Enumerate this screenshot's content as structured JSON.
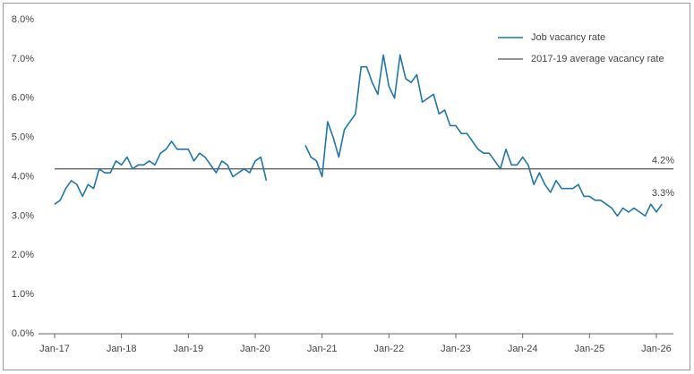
{
  "chart_data": {
    "type": "line",
    "x": [
      "2017-01",
      "2017-02",
      "2017-03",
      "2017-04",
      "2017-05",
      "2017-06",
      "2017-07",
      "2017-08",
      "2017-09",
      "2017-10",
      "2017-11",
      "2017-12",
      "2018-01",
      "2018-02",
      "2018-03",
      "2018-04",
      "2018-05",
      "2018-06",
      "2018-07",
      "2018-08",
      "2018-09",
      "2018-10",
      "2018-11",
      "2018-12",
      "2019-01",
      "2019-02",
      "2019-03",
      "2019-04",
      "2019-05",
      "2019-06",
      "2019-07",
      "2019-08",
      "2019-09",
      "2019-10",
      "2019-11",
      "2019-12",
      "2020-01",
      "2020-02",
      "2020-03",
      "2020-04",
      "2020-05",
      "2020-06",
      "2020-07",
      "2020-08",
      "2020-09",
      "2020-10",
      "2020-11",
      "2020-12",
      "2021-01",
      "2021-02",
      "2021-03",
      "2021-04",
      "2021-05",
      "2021-06",
      "2021-07",
      "2021-08",
      "2021-09",
      "2021-10",
      "2021-11",
      "2021-12",
      "2022-01",
      "2022-02",
      "2022-03",
      "2022-04",
      "2022-05",
      "2022-06",
      "2022-07",
      "2022-08",
      "2022-09",
      "2022-10",
      "2022-11",
      "2022-12",
      "2023-01",
      "2023-02",
      "2023-03",
      "2023-04",
      "2023-05",
      "2023-06",
      "2023-07",
      "2023-08",
      "2023-09",
      "2023-10",
      "2023-11",
      "2023-12",
      "2024-01",
      "2024-02",
      "2024-03",
      "2024-04",
      "2024-05",
      "2024-06",
      "2024-07",
      "2024-08",
      "2024-09",
      "2024-10",
      "2024-11",
      "2024-12",
      "2025-01",
      "2025-02",
      "2025-03",
      "2025-04",
      "2025-05",
      "2025-06",
      "2025-07",
      "2025-08",
      "2025-09",
      "2025-10",
      "2025-11",
      "2025-12",
      "2026-01",
      "2026-02"
    ],
    "series": [
      {
        "name": "Job vacancy rate",
        "color": "#1f77a8",
        "values": [
          3.3,
          3.4,
          3.7,
          3.9,
          3.8,
          3.5,
          3.8,
          3.7,
          4.2,
          4.1,
          4.1,
          4.4,
          4.3,
          4.5,
          4.2,
          4.3,
          4.3,
          4.4,
          4.3,
          4.6,
          4.7,
          4.9,
          4.7,
          4.7,
          4.7,
          4.4,
          4.6,
          4.5,
          4.3,
          4.1,
          4.4,
          4.3,
          4.0,
          4.1,
          4.2,
          4.1,
          4.4,
          4.5,
          3.9,
          null,
          null,
          null,
          null,
          null,
          null,
          4.8,
          4.5,
          4.4,
          4.0,
          5.4,
          5.0,
          4.5,
          5.2,
          5.4,
          5.6,
          6.8,
          6.8,
          6.4,
          6.1,
          7.1,
          6.3,
          6.0,
          7.1,
          6.5,
          6.4,
          6.6,
          5.9,
          6.0,
          6.1,
          5.6,
          5.7,
          5.3,
          5.3,
          5.1,
          5.1,
          4.9,
          4.7,
          4.6,
          4.6,
          4.4,
          4.2,
          4.7,
          4.3,
          4.3,
          4.5,
          4.3,
          3.8,
          4.1,
          3.8,
          3.6,
          3.9,
          3.7,
          3.7,
          3.7,
          3.8,
          3.5,
          3.5,
          3.4,
          3.4,
          3.3,
          3.2,
          3.0,
          3.2,
          3.1,
          3.2,
          3.1,
          3.0,
          3.3,
          3.1,
          3.3
        ],
        "value_labels": [
          null,
          null,
          null,
          null,
          null,
          null,
          null,
          null,
          null,
          null,
          null,
          null,
          null,
          null,
          null,
          null,
          null,
          null,
          null,
          null,
          null,
          null,
          null,
          null,
          null,
          null,
          null,
          null,
          null,
          null,
          null,
          null,
          null,
          null,
          null,
          null,
          null,
          null,
          null,
          null,
          null,
          null,
          null,
          null,
          null,
          null,
          null,
          null,
          null,
          null,
          null,
          null,
          null,
          null,
          null,
          null,
          null,
          null,
          null,
          null,
          null,
          null,
          null,
          null,
          null,
          null,
          null,
          null,
          null,
          null,
          null,
          null,
          null,
          null,
          null,
          null,
          null,
          null,
          null,
          null,
          null,
          null,
          null,
          null,
          null,
          null,
          null,
          null,
          null,
          null,
          null,
          null,
          null,
          null,
          null,
          null,
          null,
          null,
          null,
          null,
          null,
          null,
          null,
          null,
          null,
          null,
          null,
          null,
          null,
          "3.3%"
        ]
      }
    ],
    "reference_line": {
      "name": "2017-19 average vacancy rate",
      "value": 4.2,
      "label": "4.2%",
      "color": "#555555"
    },
    "ylim": [
      0,
      8
    ],
    "yticks": [
      {
        "value": 0,
        "label": "0.0%"
      },
      {
        "value": 1,
        "label": "1.0%"
      },
      {
        "value": 2,
        "label": "2.0%"
      },
      {
        "value": 3,
        "label": "3.0%"
      },
      {
        "value": 4,
        "label": "4.0%"
      },
      {
        "value": 5,
        "label": "5.0%"
      },
      {
        "value": 6,
        "label": "6.0%"
      },
      {
        "value": 7,
        "label": "7.0%"
      },
      {
        "value": 8,
        "label": "8.0%"
      }
    ],
    "xticks": [
      {
        "value": "2017-01",
        "label": "Jan-17"
      },
      {
        "value": "2018-01",
        "label": "Jan-18"
      },
      {
        "value": "2019-01",
        "label": "Jan-19"
      },
      {
        "value": "2020-01",
        "label": "Jan-20"
      },
      {
        "value": "2021-01",
        "label": "Jan-21"
      },
      {
        "value": "2022-01",
        "label": "Jan-22"
      },
      {
        "value": "2023-01",
        "label": "Jan-23"
      },
      {
        "value": "2024-01",
        "label": "Jan-24"
      },
      {
        "value": "2025-01",
        "label": "Jan-25"
      },
      {
        "value": "2026-01",
        "label": "Jan-26"
      }
    ],
    "legend": "top-right"
  }
}
